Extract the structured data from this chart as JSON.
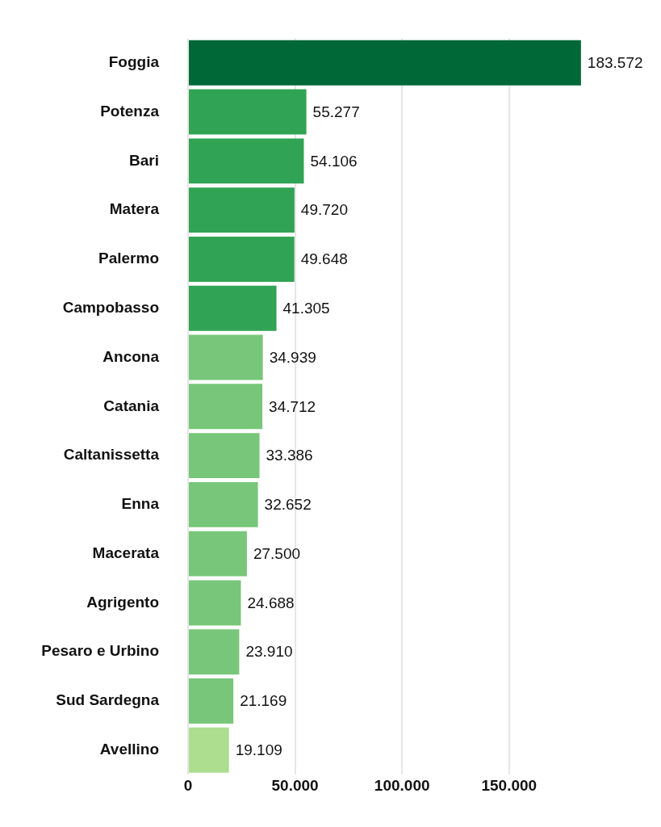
{
  "chart_data": {
    "type": "bar",
    "orientation": "horizontal",
    "categories": [
      "Foggia",
      "Potenza",
      "Bari",
      "Matera",
      "Palermo",
      "Campobasso",
      "Ancona",
      "Catania",
      "Caltanissetta",
      "Enna",
      "Macerata",
      "Agrigento",
      "Pesaro e Urbino",
      "Sud Sardegna",
      "Avellino"
    ],
    "values": [
      183572,
      55277,
      54106,
      49720,
      49648,
      41305,
      34939,
      34712,
      33386,
      32652,
      27500,
      24688,
      23910,
      21169,
      19109
    ],
    "colors": [
      "#006837",
      "#31a354",
      "#31a354",
      "#31a354",
      "#31a354",
      "#31a354",
      "#78c679",
      "#78c679",
      "#78c679",
      "#78c679",
      "#78c679",
      "#78c679",
      "#78c679",
      "#78c679",
      "#addd8e"
    ],
    "value_labels": [
      "183.572",
      "55.277",
      "54.106",
      "49.720",
      "49.648",
      "41.305",
      "34.939",
      "34.712",
      "33.386",
      "32.652",
      "27.500",
      "24.688",
      "23.910",
      "21.169",
      "19.109"
    ],
    "xlim": [
      0,
      184000
    ],
    "xticks": [
      {
        "value": 0,
        "label": "0"
      },
      {
        "value": 50000,
        "label": "50.000"
      },
      {
        "value": 100000,
        "label": "100.000"
      },
      {
        "value": 150000,
        "label": "150.000"
      }
    ],
    "grid": "x",
    "legend": false
  }
}
